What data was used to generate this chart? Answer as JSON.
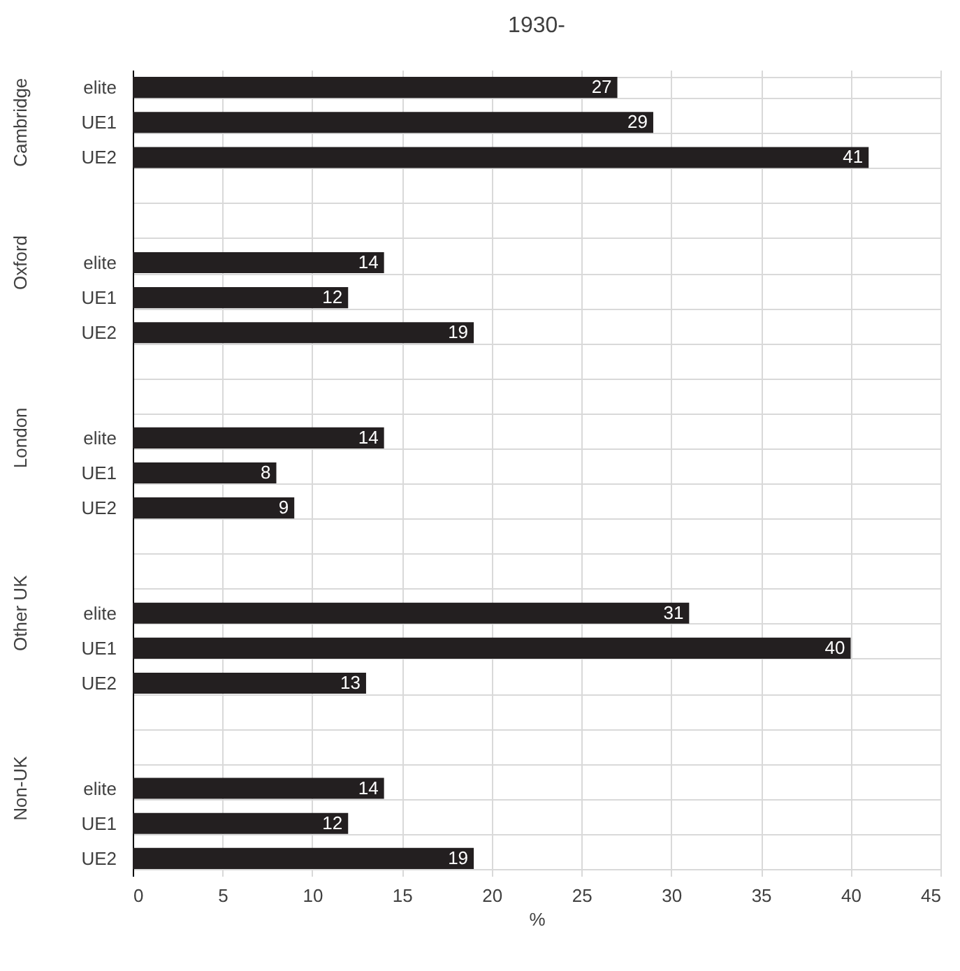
{
  "chart_data": {
    "type": "bar",
    "orientation": "horizontal",
    "title": "1930-",
    "xlabel": "%",
    "categories": [
      "elite",
      "UE1",
      "UE2",
      null,
      null,
      "elite",
      "UE1",
      "UE2",
      null,
      null,
      "elite",
      "UE1",
      "UE2",
      null,
      null,
      "elite",
      "UE1",
      "UE2",
      null,
      null,
      "elite",
      "UE1",
      "UE2"
    ],
    "values": [
      27,
      29,
      41,
      null,
      null,
      14,
      12,
      19,
      null,
      null,
      14,
      8,
      9,
      null,
      null,
      31,
      40,
      13,
      null,
      null,
      14,
      12,
      19
    ],
    "color": "#231f20",
    "data_labels": true,
    "xlim": [
      0,
      45
    ],
    "xticks": [
      0,
      5,
      10,
      15,
      20,
      25,
      30,
      35,
      40,
      45
    ],
    "grid": true,
    "annotations": [
      "Cambridge",
      "Oxford",
      "London",
      "Other UK",
      "Non-UK"
    ]
  }
}
